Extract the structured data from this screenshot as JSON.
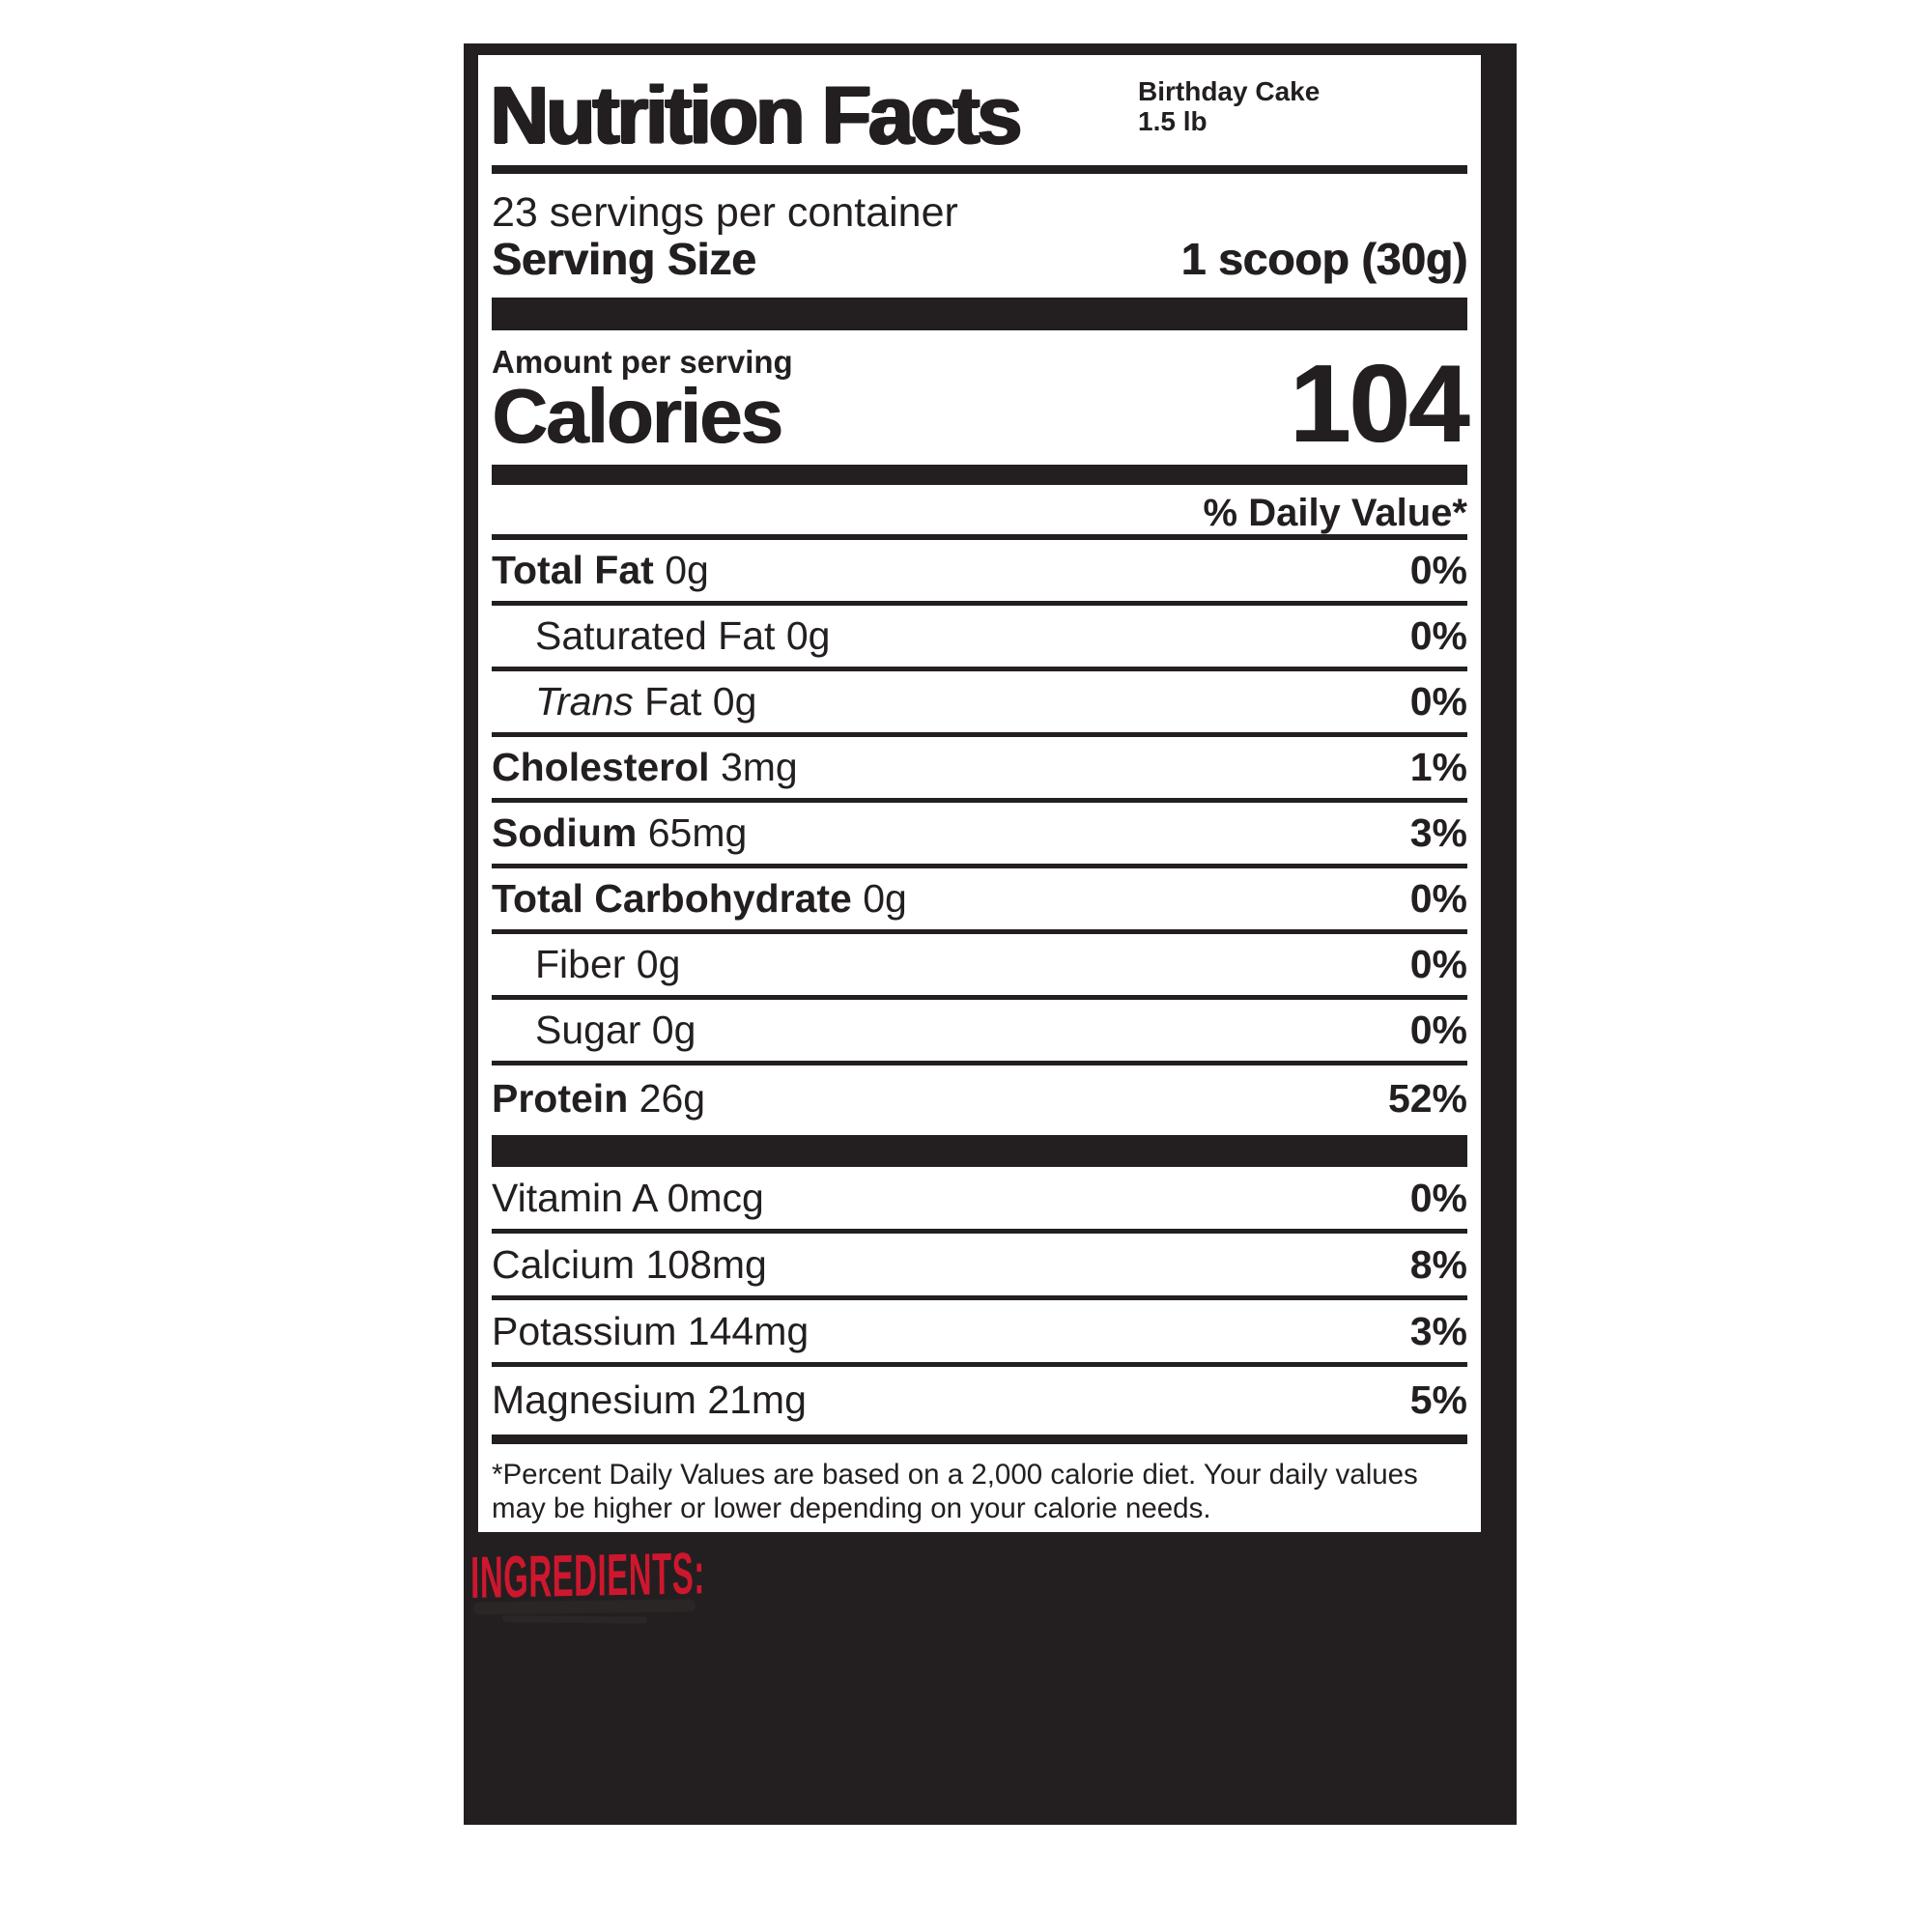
{
  "label": {
    "title": "Nutrition Facts",
    "flavor_line1": "Birthday Cake",
    "flavor_line2": "1.5 lb",
    "servings_per_container": "23 servings per container",
    "serving_size_label": "Serving Size",
    "serving_size_value": "1 scoop (30g)",
    "amount_per_serving": "Amount per serving",
    "calories_label": "Calories",
    "calories_value": "104",
    "daily_value_header": "% Daily Value*",
    "nutrient_rows": [
      {
        "segments": [
          {
            "text": "Total Fat ",
            "bold": true
          },
          {
            "text": "0g"
          }
        ],
        "percent": "0%",
        "indent": false
      },
      {
        "segments": [
          {
            "text": "Saturated Fat 0g"
          }
        ],
        "percent": "0%",
        "indent": true
      },
      {
        "segments": [
          {
            "text": "Trans",
            "italic": true
          },
          {
            "text": " Fat 0g"
          }
        ],
        "percent": "0%",
        "indent": true
      },
      {
        "segments": [
          {
            "text": "Cholesterol ",
            "bold": true
          },
          {
            "text": "3mg"
          }
        ],
        "percent": "1%",
        "indent": false
      },
      {
        "segments": [
          {
            "text": "Sodium ",
            "bold": true
          },
          {
            "text": "65mg"
          }
        ],
        "percent": "3%",
        "indent": false
      },
      {
        "segments": [
          {
            "text": "Total Carbohydrate ",
            "bold": true
          },
          {
            "text": "0g"
          }
        ],
        "percent": "0%",
        "indent": false
      },
      {
        "segments": [
          {
            "text": "Fiber 0g"
          }
        ],
        "percent": "0%",
        "indent": true
      },
      {
        "segments": [
          {
            "text": "Sugar 0g"
          }
        ],
        "percent": "0%",
        "indent": true
      },
      {
        "segments": [
          {
            "text": "Protein ",
            "bold": true
          },
          {
            "text": "26g"
          }
        ],
        "percent": "52%",
        "indent": false
      }
    ],
    "micronutrient_rows": [
      {
        "segments": [
          {
            "text": "Vitamin A 0mcg"
          }
        ],
        "percent": "0%",
        "indent": false
      },
      {
        "segments": [
          {
            "text": "Calcium 108mg"
          }
        ],
        "percent": "8%",
        "indent": false
      },
      {
        "segments": [
          {
            "text": "Potassium 144mg"
          }
        ],
        "percent": "3%",
        "indent": false
      },
      {
        "segments": [
          {
            "text": "Magnesium 21mg"
          }
        ],
        "percent": "5%",
        "indent": false
      }
    ],
    "footnote": "*Percent Daily Values are based on a 2,000 calorie diet. Your daily values may be higher or lower depending on your calorie needs."
  },
  "ingredients": {
    "header": "INGREDIENTS:"
  },
  "colors": {
    "panel_black": "#231f20",
    "ink_black": "#231f20",
    "accent_red": "#ce172e",
    "label_background": "#ffffff"
  }
}
